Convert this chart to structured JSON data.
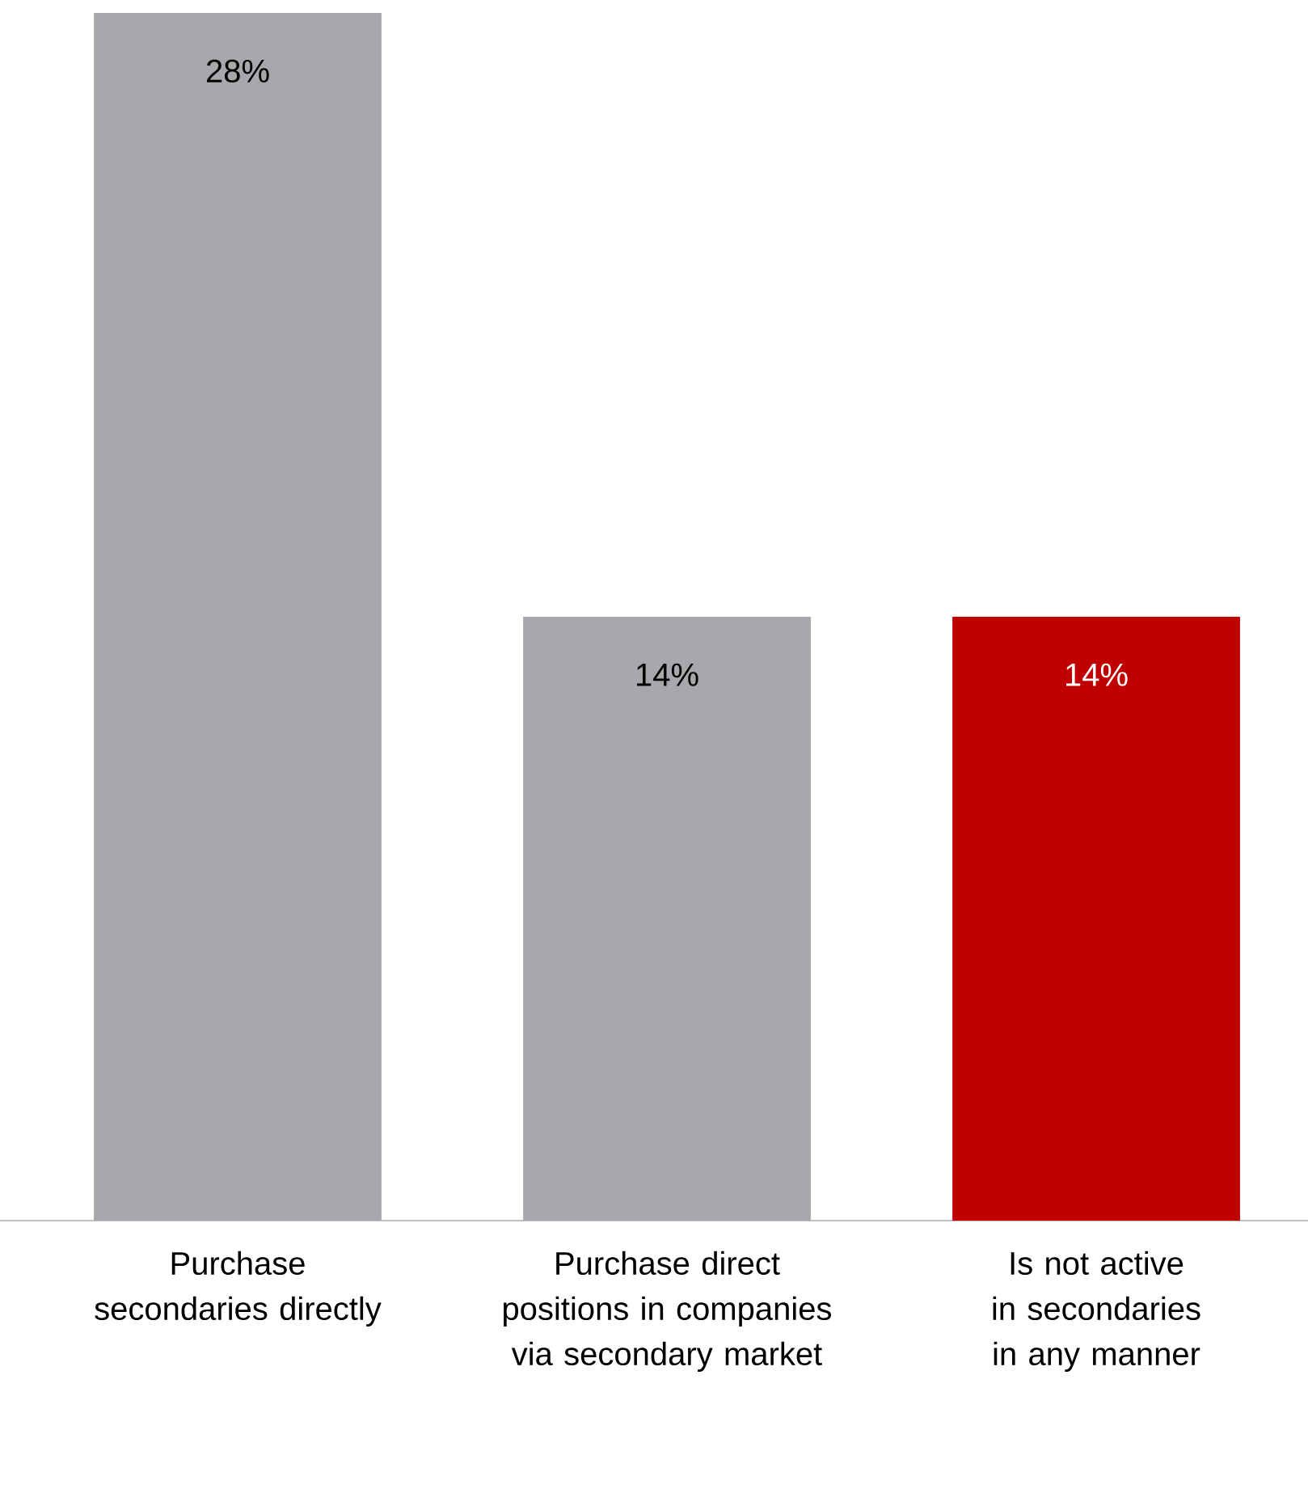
{
  "chart_data": {
    "type": "bar",
    "categories": [
      "Purchase secondaries directly",
      "Purchase direct positions in companies via secondary market",
      "Is not active in secondaries in any manner"
    ],
    "values": [
      28,
      14,
      14
    ],
    "colors": [
      "#a7a8ab",
      "#a7a8ab",
      "#c00000"
    ],
    "value_labels": [
      "28%",
      "14%",
      "14%"
    ]
  }
}
